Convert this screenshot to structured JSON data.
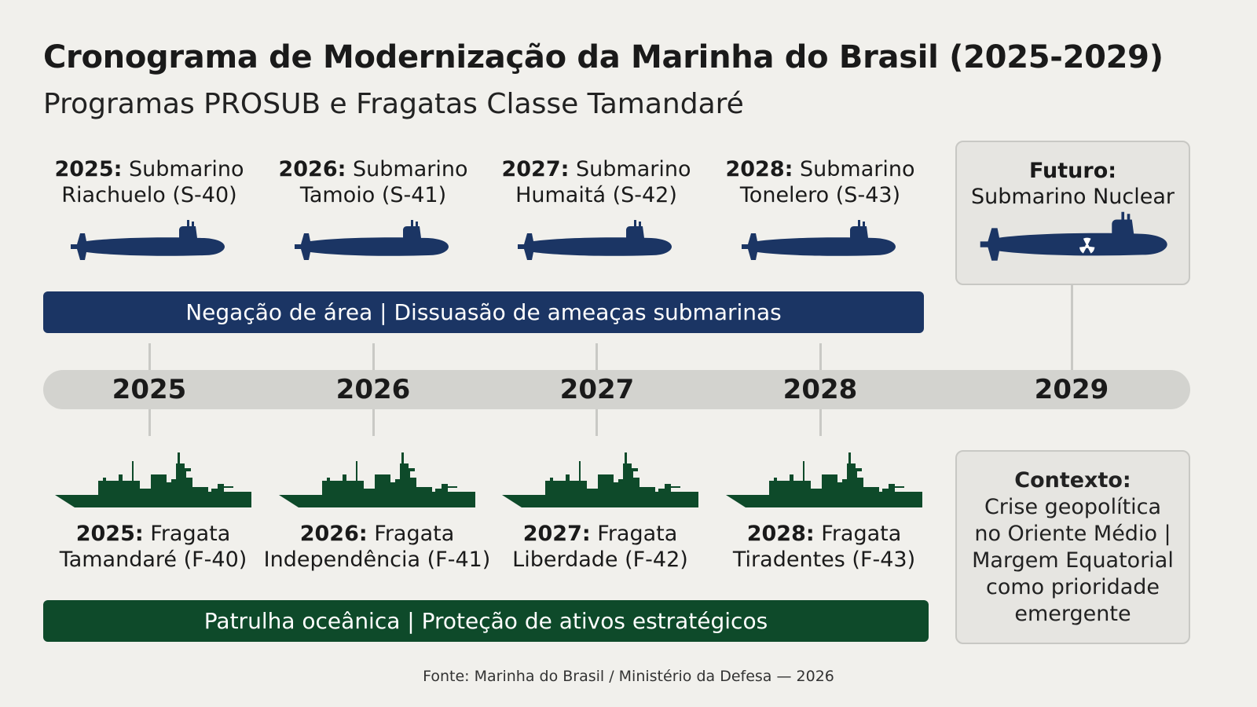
{
  "header": {
    "title": "Cronograma de Modernização da Marinha do Brasil (2025-2029)",
    "subtitle": "Programas PROSUB e Fragatas Classe Tamandaré"
  },
  "submarines": [
    {
      "year": "2025:",
      "name": "Submarino",
      "detail": "Riachuelo (S-40)"
    },
    {
      "year": "2026:",
      "name": "Submarino",
      "detail": "Tamoio (S-41)"
    },
    {
      "year": "2027:",
      "name": "Submarino",
      "detail": "Humaitá (S-42)"
    },
    {
      "year": "2028:",
      "name": "Submarino",
      "detail": "Tonelero (S-43)"
    }
  ],
  "future": {
    "label": "Futuro:",
    "detail": "Submarino Nuclear",
    "icon": "radiation-icon"
  },
  "submarine_bar": "Negação de área | Dissuasão de ameaças submarinas",
  "timeline": {
    "years": [
      "2025",
      "2026",
      "2027",
      "2028",
      "2029"
    ]
  },
  "frigates": [
    {
      "year": "2025:",
      "name": "Fragata",
      "detail": "Tamandaré (F-40)"
    },
    {
      "year": "2026:",
      "name": "Fragata",
      "detail": "Independência (F-41)"
    },
    {
      "year": "2027:",
      "name": "Fragata",
      "detail": "Liberdade (F-42)"
    },
    {
      "year": "2028:",
      "name": "Fragata",
      "detail": "Tiradentes (F-43)"
    }
  ],
  "frigate_bar": "Patrulha oceânica | Proteção de ativos estratégicos",
  "context": {
    "label": "Contexto:",
    "lines": [
      "Crise geopolítica",
      "no Oriente Médio |",
      "Margem Equatorial",
      "como prioridade",
      "emergente"
    ]
  },
  "source": "Fonte: Marinha do Brasil / Ministério da Defesa — 2026",
  "colors": {
    "navy": "#1b3564",
    "green": "#0e4a2a",
    "background": "#f1f0ec",
    "timeline": "#d3d3cf"
  }
}
